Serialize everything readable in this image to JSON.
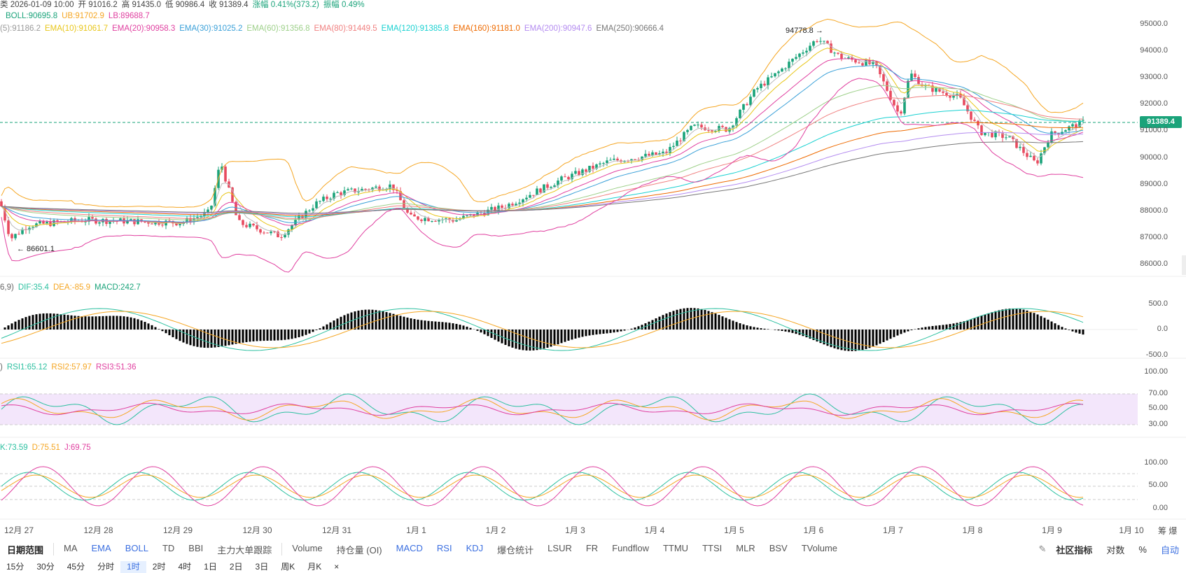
{
  "header": {
    "line1": [
      {
        "text": "类 2026-01-09 10:00",
        "color": "#444"
      },
      {
        "text": "开 91016.2",
        "color": "#444"
      },
      {
        "text": "高 91435.0",
        "color": "#444"
      },
      {
        "text": "低 90986.4",
        "color": "#444"
      },
      {
        "text": "收 91389.4",
        "color": "#444"
      },
      {
        "text": "涨幅 0.41%(373.2)",
        "color": "#1aa37a"
      },
      {
        "text": "振幅 0.49%",
        "color": "#1aa37a"
      }
    ],
    "boll": [
      {
        "text": "BOLL:90695.8",
        "color": "#1aa37a"
      },
      {
        "text": "UB:91702.9",
        "color": "#f5a623"
      },
      {
        "text": "LB:89688.7",
        "color": "#e040a0"
      }
    ],
    "ema": [
      {
        "text": "(5):91186.2",
        "color": "#999"
      },
      {
        "text": "EMA(10):91061.7",
        "color": "#e8c61a"
      },
      {
        "text": "EMA(20):90958.3",
        "color": "#e040a0"
      },
      {
        "text": "EMA(30):91025.2",
        "color": "#3aa0d8"
      },
      {
        "text": "EMA(60):91356.8",
        "color": "#9ed08a"
      },
      {
        "text": "EMA(80):91449.5",
        "color": "#f08080"
      },
      {
        "text": "EMA(120):91385.8",
        "color": "#19d1d1"
      },
      {
        "text": "EMA(160):91181.0",
        "color": "#ee6a00"
      },
      {
        "text": "EMA(200):90947.6",
        "color": "#b48cf0"
      },
      {
        "text": "EMA(250):90666.4",
        "color": "#777"
      }
    ],
    "macd": [
      {
        "text": "6,9)",
        "color": "#666"
      },
      {
        "text": "DIF:35.4",
        "color": "#2cc0a0"
      },
      {
        "text": "DEA:-85.9",
        "color": "#f5a623"
      },
      {
        "text": "MACD:242.7",
        "color": "#1aa37a"
      }
    ],
    "rsi": [
      {
        "text": ")",
        "color": "#666"
      },
      {
        "text": "RSI1:65.12",
        "color": "#2cc0a0"
      },
      {
        "text": "RSI2:57.97",
        "color": "#f5a623"
      },
      {
        "text": "RSI3:51.36",
        "color": "#e040a0"
      }
    ],
    "kdj": [
      {
        "text": "K:73.59",
        "color": "#2cc0a0"
      },
      {
        "text": "D:75.51",
        "color": "#f5a623"
      },
      {
        "text": "J:69.75",
        "color": "#e040a0"
      }
    ]
  },
  "price_axis": [
    "95000.0",
    "94000.0",
    "93000.0",
    "92000.0",
    "91000.0",
    "90000.0",
    "89000.0",
    "88000.0",
    "87000.0",
    "86000.0"
  ],
  "current_price": "91389.4",
  "high_annotation": "94778.8 →",
  "low_annotation": "← 86601.1",
  "macd_axis": [
    "500.0",
    "0.0",
    "-500.0"
  ],
  "rsi_axis": [
    "100.00",
    "70.00",
    "50.00",
    "30.00"
  ],
  "kdj_axis": [
    "100.00",
    "50.00",
    "0.00"
  ],
  "x_axis": [
    "12月 27",
    "12月 28",
    "12月 29",
    "12月 30",
    "12月 31",
    "1月 1",
    "1月 2",
    "1月 3",
    "1月 4",
    "1月 5",
    "1月 6",
    "1月 7",
    "1月 8",
    "1月 9",
    "1月 10"
  ],
  "x_axis_extra": "筹 爆",
  "toolbar": {
    "range_label": "日期范围",
    "main_indicators": [
      "MA",
      "EMA",
      "BOLL",
      "TD",
      "BBI",
      "主力大单跟踪"
    ],
    "sub_indicators": [
      "Volume",
      "持仓量 (OI)",
      "MACD",
      "RSI",
      "KDJ",
      "爆仓统计",
      "LSUR",
      "FR",
      "Fundflow",
      "TTMU",
      "TTSI",
      "MLR",
      "BSV",
      "TVolume"
    ],
    "community": "社区指标",
    "log": "对数",
    "percent": "%",
    "auto": "自动"
  },
  "timeframes": [
    "15分",
    "30分",
    "45分",
    "分时",
    "1时",
    "2时",
    "4时",
    "1日",
    "2日",
    "3日",
    "周K",
    "月K",
    "×"
  ],
  "active_timeframe": "1时",
  "colors": {
    "up": "#1aa37a",
    "down": "#e84a5f",
    "boll_mid": "#1aa37a",
    "boll_up": "#f5a623",
    "boll_low": "#e040a0",
    "rsi_band": "#f3e6fb"
  }
}
